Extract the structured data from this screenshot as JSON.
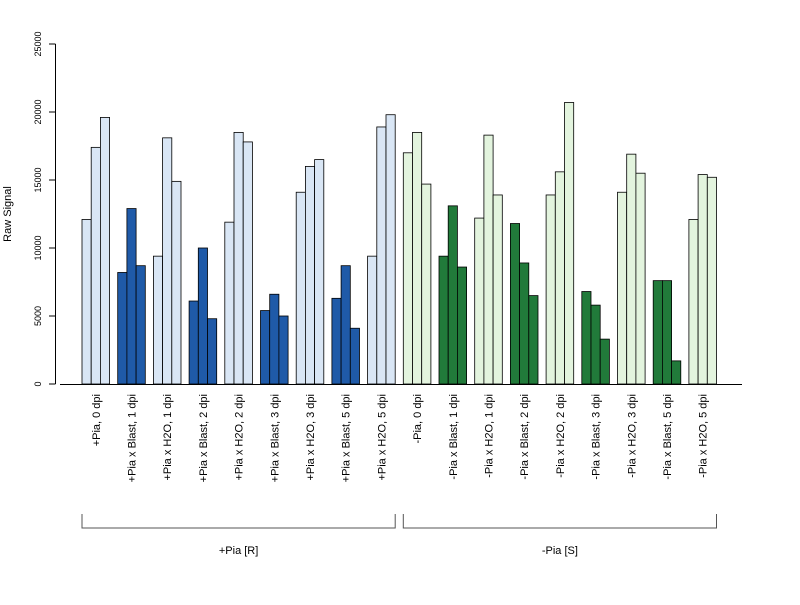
{
  "chart_data": {
    "type": "bar",
    "ylabel": "Raw Signal",
    "ylim": [
      0,
      25000
    ],
    "yticks": [
      0,
      5000,
      10000,
      15000,
      20000,
      25000
    ],
    "grid": false,
    "legend": "none",
    "bars_per_group": 3,
    "categories": [
      "+Pia, 0 dpi",
      "+Pia x Blast, 1 dpi",
      "+Pia x H2O, 1 dpi",
      "+Pia x Blast, 2 dpi",
      "+Pia x H2O, 2 dpi",
      "+Pia x Blast, 3 dpi",
      "+Pia x H2O, 3 dpi",
      "+Pia x Blast, 5 dpi",
      "+Pia x H2O, 5 dpi",
      "-Pia, 0 dpi",
      "-Pia x Blast, 1 dpi",
      "-Pia x H2O, 1 dpi",
      "-Pia x Blast, 2 dpi",
      "-Pia x H2O, 2 dpi",
      "-Pia x Blast, 3 dpi",
      "-Pia x H2O, 3 dpi",
      "-Pia x Blast, 5 dpi",
      "-Pia x H2O, 5 dpi"
    ],
    "values": [
      [
        12100,
        17400,
        19600
      ],
      [
        8200,
        12900,
        8700
      ],
      [
        9400,
        18100,
        14900
      ],
      [
        6100,
        10000,
        4800
      ],
      [
        11900,
        18500,
        17800
      ],
      [
        5400,
        6600,
        5000
      ],
      [
        14100,
        16000,
        16500
      ],
      [
        6300,
        8700,
        4100
      ],
      [
        9400,
        18900,
        19800
      ],
      [
        17000,
        18500,
        14700
      ],
      [
        9400,
        13100,
        8600
      ],
      [
        12200,
        18300,
        13900
      ],
      [
        11800,
        8900,
        6500
      ],
      [
        13900,
        15600,
        20700
      ],
      [
        6800,
        5800,
        3300
      ],
      [
        14100,
        16900,
        15500
      ],
      [
        7600,
        7600,
        1700
      ],
      [
        12100,
        15400,
        15200
      ]
    ],
    "groups": [
      {
        "label": "+Pia [R]",
        "from": 0,
        "to": 8
      },
      {
        "label": "-Pia [S]",
        "from": 9,
        "to": 17
      }
    ],
    "colors": {
      "plus_light": "#d9e6f5",
      "plus_dark": "#1f5aa8",
      "minus_light": "#e3f4de",
      "minus_dark": "#217a3a",
      "axis": "#000000"
    }
  }
}
